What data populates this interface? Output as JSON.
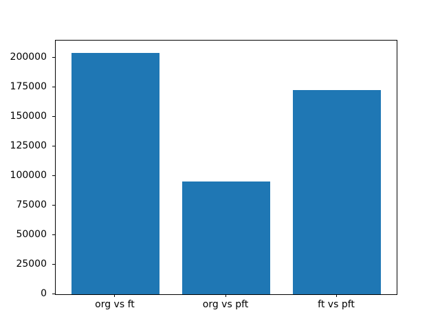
{
  "chart_data": {
    "type": "bar",
    "categories": [
      "org vs ft",
      "org vs pft",
      "ft vs pft"
    ],
    "values": [
      204500,
      95500,
      173000
    ],
    "title": "",
    "xlabel": "",
    "ylabel": "",
    "ylim": [
      0,
      214725
    ],
    "yticks": [
      0,
      25000,
      50000,
      75000,
      100000,
      125000,
      150000,
      175000,
      200000
    ],
    "bar_color": "#1f77b4",
    "bar_width_fraction": 0.8,
    "grid": false,
    "legend": null,
    "axes_color": "#000000",
    "background_color": "#ffffff"
  }
}
